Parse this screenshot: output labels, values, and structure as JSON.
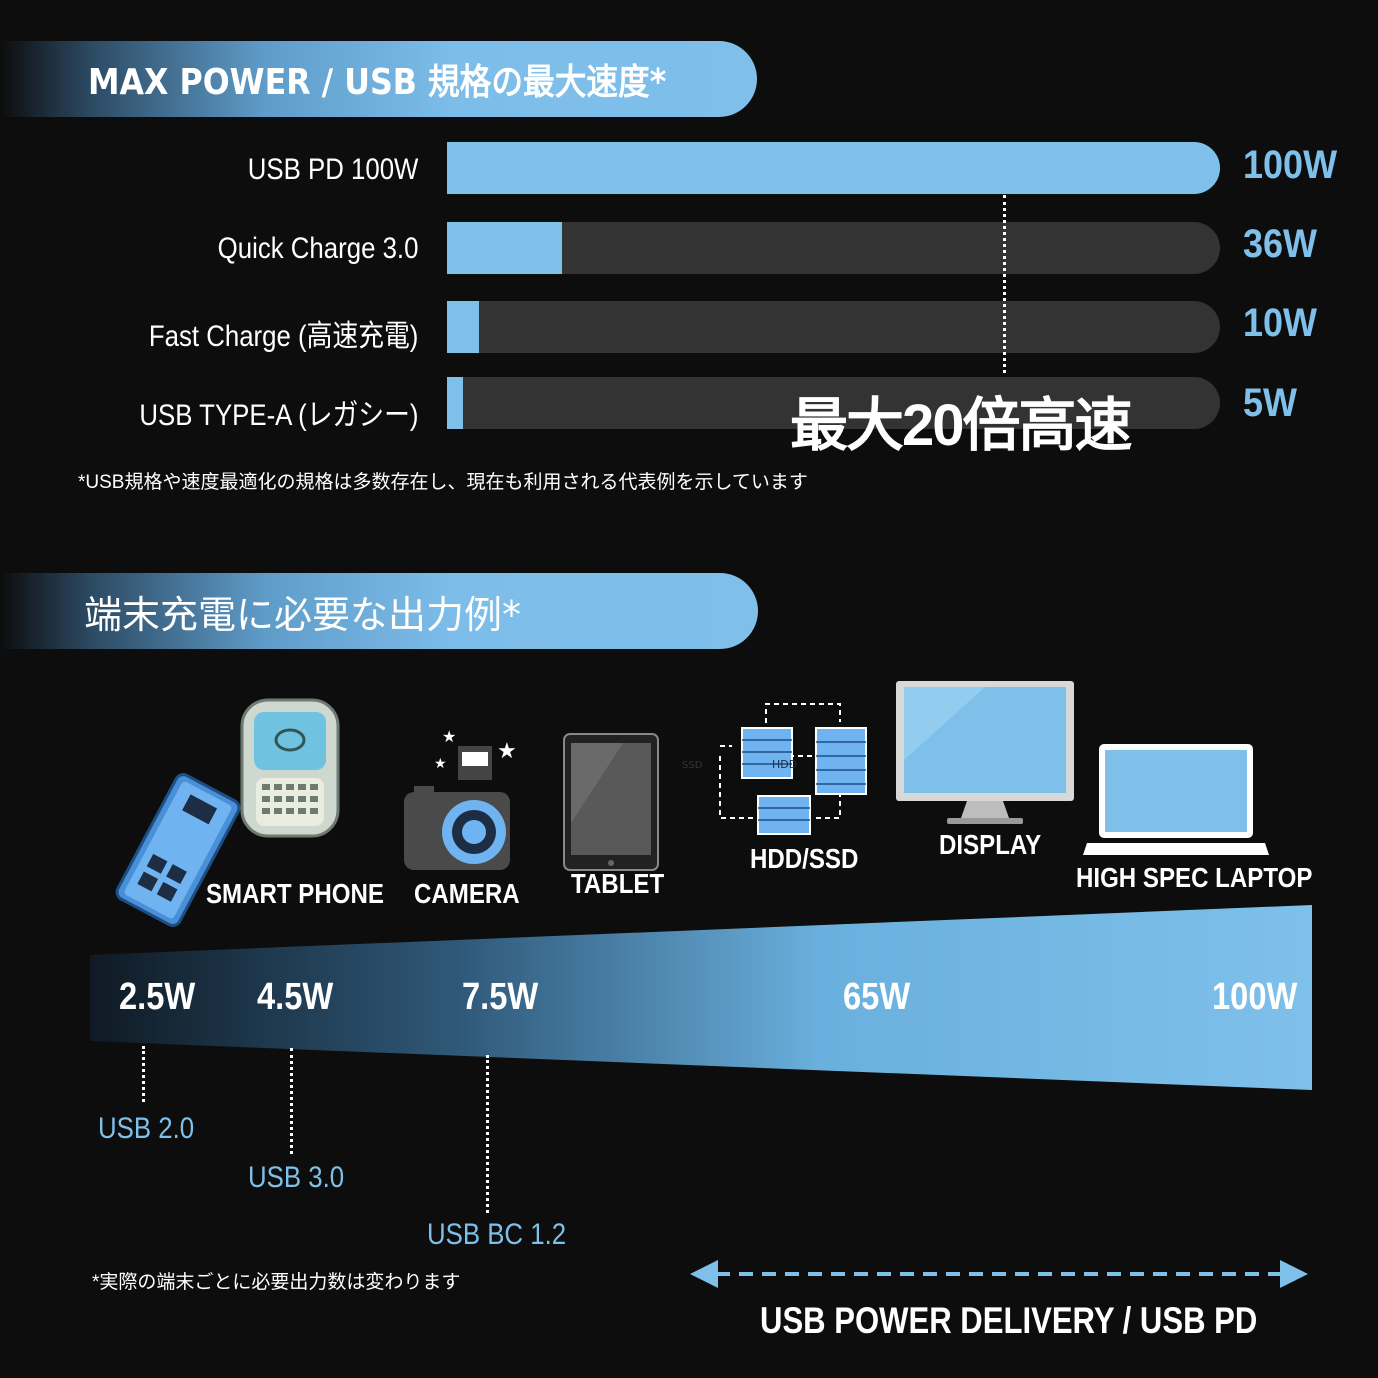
{
  "section1": {
    "title": "MAX POWER / USB 規格の最大速度*",
    "footnote": "*USB規格や速度最適化の規格は多数存在し、現在も利用される代表例を示しています",
    "callout": "最大20倍高速"
  },
  "chart_data": [
    {
      "type": "bar",
      "orientation": "horizontal",
      "title": "MAX POWER / USB 規格の最大速度*",
      "categories": [
        "USB PD 100W",
        "Quick Charge 3.0",
        "Fast Charge (高速充電)",
        "USB TYPE-A (レガシー)"
      ],
      "values": [
        100,
        36,
        10,
        5
      ],
      "value_labels": [
        "100W",
        "36W",
        "10W",
        "5W"
      ],
      "xlim": [
        0,
        100
      ],
      "colors": {
        "fill": "#7ec0ea",
        "track": "#333333"
      }
    },
    {
      "type": "area",
      "title": "端末充電に必要な出力例*",
      "points": [
        {
          "label": "2.5W",
          "value": 2.5,
          "standard": "USB 2.0"
        },
        {
          "label": "4.5W",
          "value": 4.5,
          "standard": "USB 3.0"
        },
        {
          "label": "7.5W",
          "value": 7.5,
          "standard": "USB BC 1.2"
        },
        {
          "label": "65W",
          "value": 65
        },
        {
          "label": "100W",
          "value": 100
        }
      ],
      "range_label": "USB POWER DELIVERY / USB PD"
    }
  ],
  "section2": {
    "title": "端末充電に必要な出力例*",
    "footnote": "*実際の端末ごとに必要出力数は変わります",
    "devices": [
      "SMART PHONE",
      "CAMERA",
      "TABLET",
      "HDD/SSD",
      "DISPLAY",
      "HIGH SPEC LAPTOP"
    ],
    "pd_label": "USB POWER DELIVERY / USB PD",
    "icon_text": {
      "hdd": "HDD",
      "ssd": "SSD"
    }
  },
  "colors": {
    "accent": "#7ec0ea",
    "background": "#0d0d0d"
  }
}
